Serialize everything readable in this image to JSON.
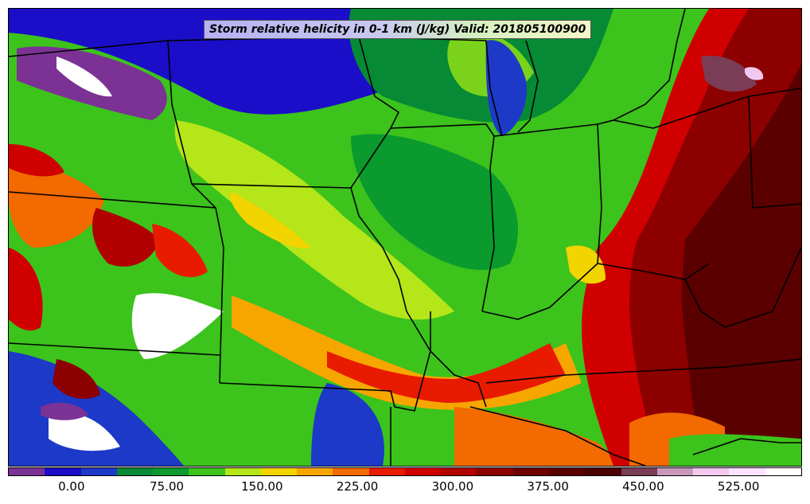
{
  "title": "Storm relative helicity in 0-1 km (J/kg) Valid: 201805100900",
  "colorbar": {
    "colors": [
      "#7b3294",
      "#1a0ec8",
      "#1c39c8",
      "#078a35",
      "#0a9a2e",
      "#3cc31c",
      "#b4e61a",
      "#f2d400",
      "#f7a600",
      "#f26a00",
      "#e81b00",
      "#d00000",
      "#b00000",
      "#8c0000",
      "#6e0000",
      "#5a0000",
      "#4a0000",
      "#7a3d55",
      "#c898b8",
      "#f2c8ee",
      "#ffe2ff",
      "#ffffff"
    ],
    "tick_labels": [
      "0.00",
      "75.00",
      "150.00",
      "225.00",
      "300.00",
      "375.00",
      "450.00",
      "525.00"
    ]
  },
  "chart_data": {
    "type": "heatmap",
    "title": "Storm relative helicity in 0-1 km (J/kg) Valid: 201805100900",
    "variable": "Storm relative helicity in 0-1 km",
    "units": "J/kg",
    "valid_time": "201805100900",
    "colorbar_range": [
      -50,
      575
    ],
    "colorbar_interval": 25,
    "colorbar_ticks": [
      0,
      75,
      150,
      225,
      300,
      375,
      450,
      525
    ]
  }
}
